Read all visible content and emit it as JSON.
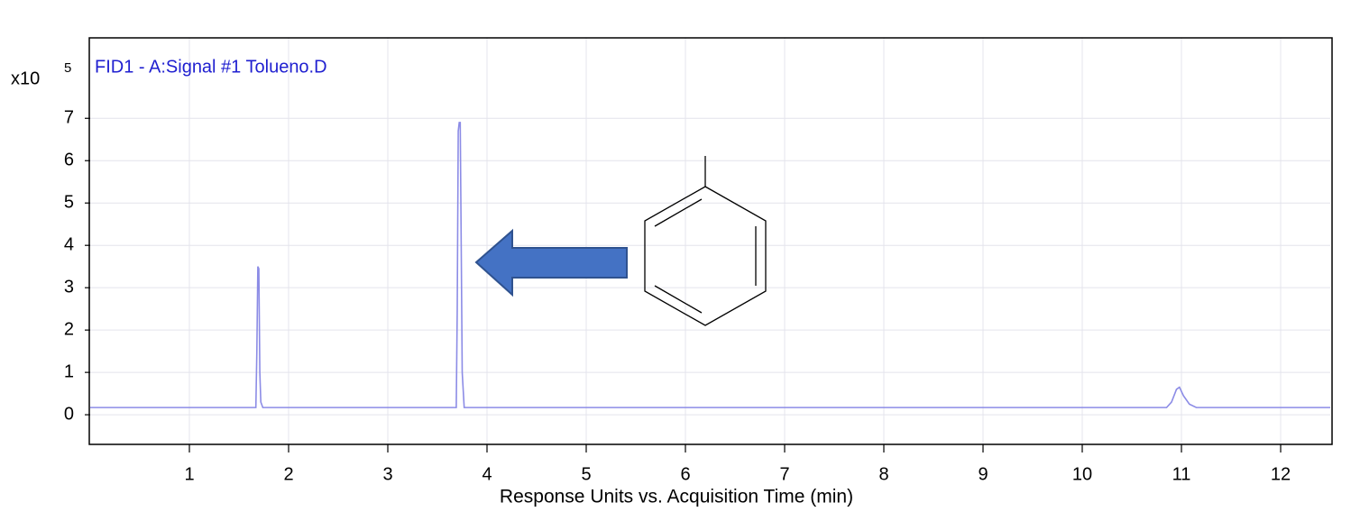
{
  "chart_data": {
    "type": "line",
    "title": "FID1 - A:Signal #1 Tolueno.D",
    "scale_label": "x10",
    "scale_exponent": "5",
    "x_label": "Response Units vs. Acquisition Time (min)",
    "xlim": [
      0,
      12.5
    ],
    "ylim": [
      -0.7,
      8.9
    ],
    "xticks": [
      1,
      2,
      3,
      4,
      5,
      6,
      7,
      8,
      9,
      10,
      11,
      12
    ],
    "yticks": [
      0,
      1,
      2,
      3,
      4,
      5,
      6,
      7
    ],
    "grid": true,
    "series": [
      {
        "color": "#8c8ce6",
        "x": [
          0,
          1.67,
          1.68,
          1.69,
          1.7,
          1.71,
          1.72,
          1.74,
          3.69,
          3.7,
          3.71,
          3.72,
          3.73,
          3.74,
          3.75,
          3.77,
          10.85,
          10.9,
          10.95,
          10.98,
          11.02,
          11.08,
          11.15,
          12.5
        ],
        "values": [
          0.17,
          0.17,
          1.5,
          3.5,
          3.45,
          1.0,
          0.3,
          0.17,
          0.17,
          2.5,
          6.7,
          6.9,
          6.9,
          4.0,
          1.0,
          0.17,
          0.17,
          0.3,
          0.6,
          0.65,
          0.45,
          0.25,
          0.17,
          0.17
        ]
      }
    ]
  }
}
